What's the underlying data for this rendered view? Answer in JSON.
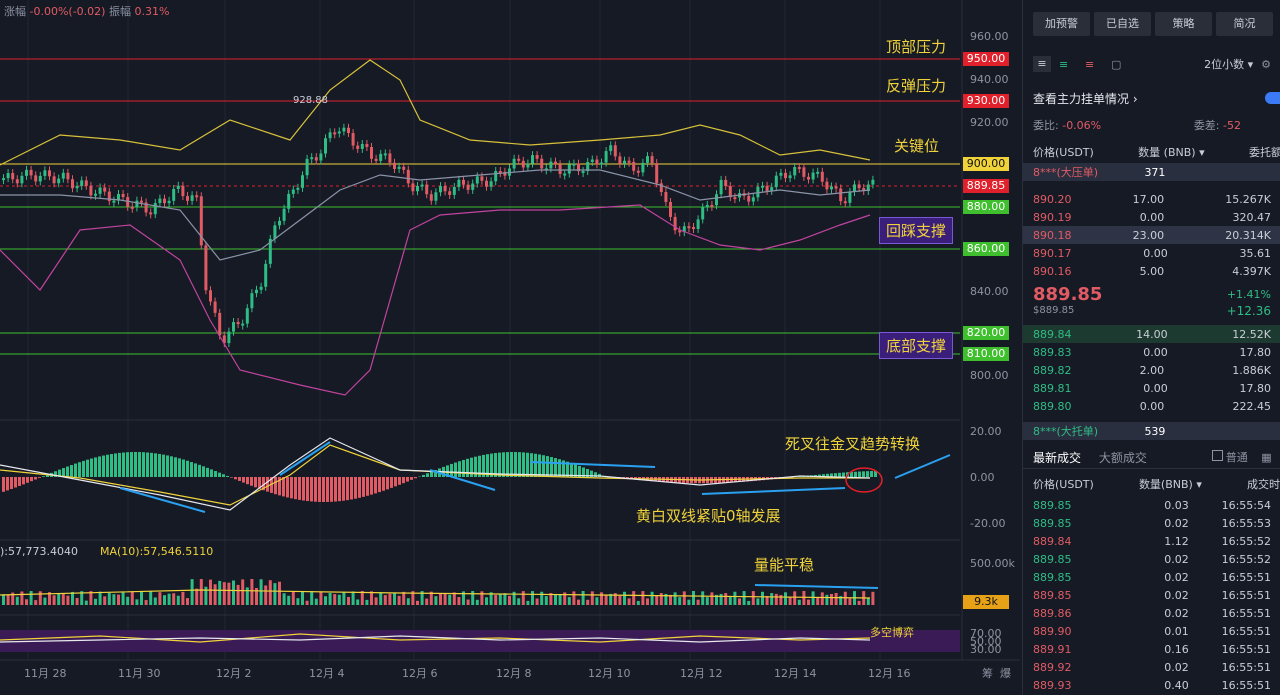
{
  "header": {
    "change_label": "涨幅",
    "change_value": "-0.00%(-0.02)",
    "amp_label": "振幅",
    "amp_value": "0.31%"
  },
  "price_axis": [
    "960.00",
    "940.00",
    "920.00",
    "840.00",
    "800.00"
  ],
  "price_levels": [
    {
      "value": "950.00",
      "color": "#e0202a"
    },
    {
      "value": "930.00",
      "color": "#e0202a"
    },
    {
      "value": "900.00",
      "color": "#f0d33a"
    },
    {
      "value": "889.85",
      "color": "#e0202a"
    },
    {
      "value": "880.00",
      "color": "#3fbf2e"
    },
    {
      "value": "860.00",
      "color": "#3fbf2e"
    },
    {
      "value": "820.00",
      "color": "#3fbf2e"
    },
    {
      "value": "810.00",
      "color": "#3fbf2e"
    }
  ],
  "annotations": {
    "top_pressure": "顶部压力",
    "rebound_pressure": "反弹压力",
    "key_level": "关键位",
    "pullback_support": "回踩支撑",
    "bottom_support": "底部支撑",
    "peak_label": "928.88",
    "macd_cross": "死叉往金叉趋势转换",
    "macd_lines": "黄白双线紧贴0轴发展",
    "volume_note": "量能平稳",
    "rsi_note": "多空博弈"
  },
  "macd_axis": [
    "20.00",
    "0.00",
    "-20.00"
  ],
  "volume_info": {
    "ma5_label": "):57,773.4040",
    "ma10_label": "MA(10):57,546.5110",
    "axis": "500.00k",
    "current": "9.3k"
  },
  "rsi_axis": [
    "70.00",
    "50.00",
    "30.00"
  ],
  "x_axis": [
    "11月 28",
    "11月 30",
    "12月 2",
    "12月 4",
    "12月 6",
    "12月 8",
    "12月 10",
    "12月 12",
    "12月 14",
    "12月 16"
  ],
  "x_tail": [
    "筹",
    "爆"
  ],
  "panel": {
    "buttons": [
      "加预警",
      "已自选",
      "策略",
      "简况"
    ],
    "decimals": "2位小数",
    "main_orders": "查看主力挂单情况",
    "wei_bi_label": "委比:",
    "wei_bi_value": "-0.06%",
    "wei_cha_label": "委差:",
    "wei_cha_value": "-52",
    "col_price": "价格(USDT)",
    "col_qty": "数量 (BNB)",
    "col_total": "委托额",
    "big_ask": {
      "label": "8***(大压单)",
      "qty": "371"
    },
    "asks": [
      {
        "price": "890.20",
        "qty": "17.00",
        "total": "15.267K"
      },
      {
        "price": "890.19",
        "qty": "0.00",
        "total": "320.47"
      },
      {
        "price": "890.18",
        "qty": "23.00",
        "total": "20.314K"
      },
      {
        "price": "890.17",
        "qty": "0.00",
        "total": "35.61"
      },
      {
        "price": "890.16",
        "qty": "5.00",
        "total": "4.397K"
      }
    ],
    "last_price": "889.85",
    "last_price_sub": "$889.85",
    "change_pct": "+1.41%",
    "change_abs": "+12.36",
    "bids": [
      {
        "price": "889.84",
        "qty": "14.00",
        "total": "12.52K"
      },
      {
        "price": "889.83",
        "qty": "0.00",
        "total": "17.80"
      },
      {
        "price": "889.82",
        "qty": "2.00",
        "total": "1.886K"
      },
      {
        "price": "889.81",
        "qty": "0.00",
        "total": "17.80"
      },
      {
        "price": "889.80",
        "qty": "0.00",
        "total": "222.45"
      }
    ],
    "big_bid": {
      "label": "8***(大托单)",
      "qty": "539"
    },
    "tab_latest": "最新成交",
    "tab_large": "大额成交",
    "ordinary": "普通",
    "trade_col_price": "价格(USDT)",
    "trade_col_qty": "数量(BNB)",
    "trade_col_time": "成交时间",
    "trades": [
      {
        "price": "889.85",
        "qty": "0.03",
        "time": "16:55:54",
        "side": "green"
      },
      {
        "price": "889.85",
        "qty": "0.02",
        "time": "16:55:53",
        "side": "green"
      },
      {
        "price": "889.84",
        "qty": "1.12",
        "time": "16:55:52",
        "side": "red"
      },
      {
        "price": "889.85",
        "qty": "0.02",
        "time": "16:55:52",
        "side": "green"
      },
      {
        "price": "889.85",
        "qty": "0.02",
        "time": "16:55:51",
        "side": "green"
      },
      {
        "price": "889.85",
        "qty": "0.02",
        "time": "16:55:51",
        "side": "red"
      },
      {
        "price": "889.86",
        "qty": "0.02",
        "time": "16:55:51",
        "side": "red"
      },
      {
        "price": "889.90",
        "qty": "0.01",
        "time": "16:55:51",
        "side": "red"
      },
      {
        "price": "889.91",
        "qty": "0.16",
        "time": "16:55:51",
        "side": "red"
      },
      {
        "price": "889.92",
        "qty": "0.02",
        "time": "16:55:51",
        "side": "red"
      },
      {
        "price": "889.93",
        "qty": "0.40",
        "time": "16:55:51",
        "side": "red"
      }
    ]
  }
}
